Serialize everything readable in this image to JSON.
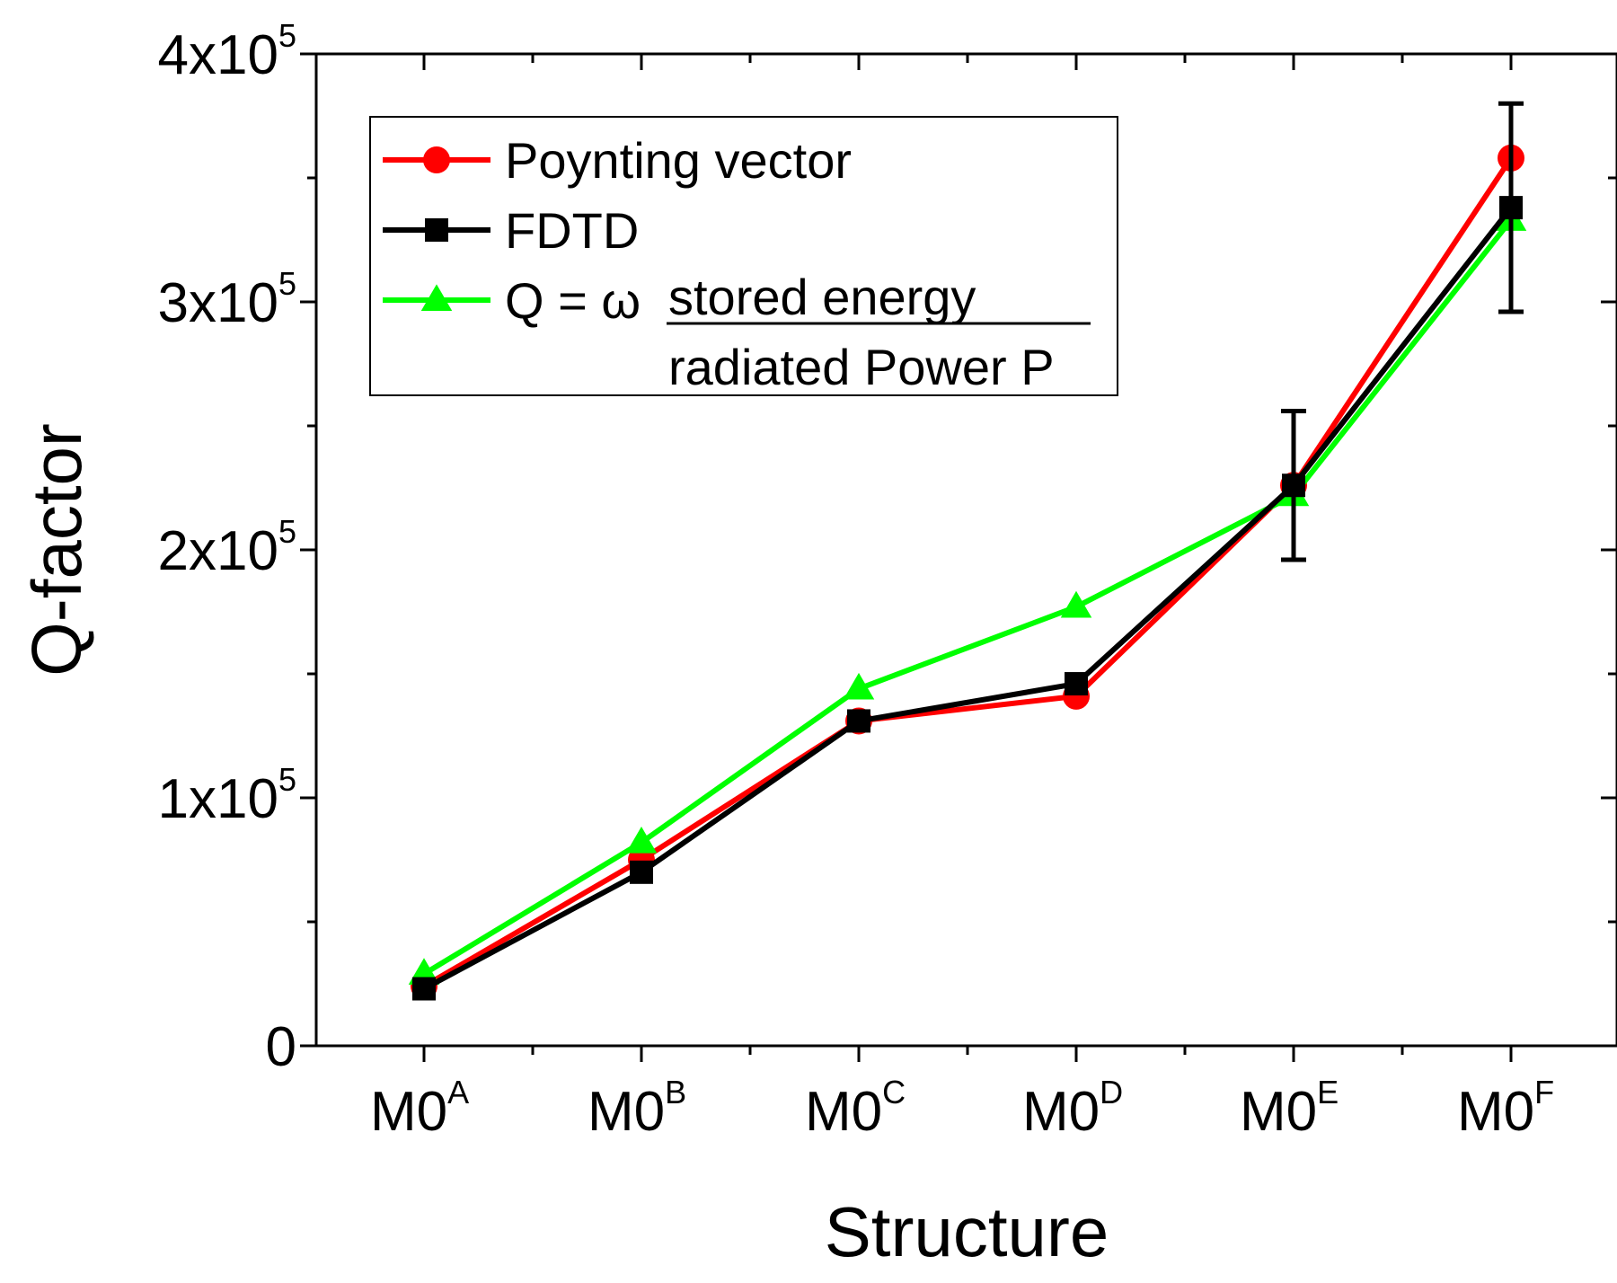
{
  "chart_data": {
    "type": "line",
    "xlabel": "Structure",
    "ylabel": "Q-factor",
    "categories": [
      {
        "base": "M0",
        "sup": "A"
      },
      {
        "base": "M0",
        "sup": "B"
      },
      {
        "base": "M0",
        "sup": "C"
      },
      {
        "base": "M0",
        "sup": "D"
      },
      {
        "base": "M0",
        "sup": "E"
      },
      {
        "base": "M0",
        "sup": "F"
      }
    ],
    "ylim": [
      0,
      400000
    ],
    "yticks": [
      {
        "value": 0,
        "base": "0",
        "sup": ""
      },
      {
        "value": 100000,
        "base": "1x10",
        "sup": "5"
      },
      {
        "value": 200000,
        "base": "2x10",
        "sup": "5"
      },
      {
        "value": 300000,
        "base": "3x10",
        "sup": "5"
      },
      {
        "value": 400000,
        "base": "4x10",
        "sup": "5"
      }
    ],
    "yminor_step": 50000,
    "grid": false,
    "legend_position": "top-left",
    "series": [
      {
        "name": "Poynting vector",
        "color": "#ff0000",
        "marker": "circle",
        "values": [
          24000,
          75000,
          131000,
          141000,
          226000,
          358000
        ]
      },
      {
        "name": "FDTD",
        "color": "#000000",
        "marker": "square",
        "values": [
          23000,
          70000,
          131000,
          146000,
          226000,
          338000
        ],
        "error_bars": [
          0,
          0,
          0,
          0,
          30000,
          42000
        ]
      },
      {
        "name_prefix": "Q = ω",
        "name_numerator": "stored energy",
        "name_denominator": "radiated Power P",
        "color": "#00ff00",
        "marker": "triangle",
        "values": [
          29000,
          82000,
          144000,
          177000,
          222000,
          333000
        ]
      }
    ]
  }
}
